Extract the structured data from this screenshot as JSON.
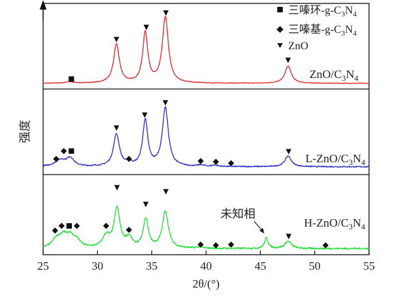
{
  "chart_data": {
    "type": "line",
    "xlabel": "2θ/(°)",
    "ylabel": "强度",
    "xlim": [
      25,
      55
    ],
    "x_ticks": [
      "25",
      "30",
      "35",
      "40",
      "45",
      "50",
      "55"
    ],
    "grid": false,
    "legend_position": "top-right",
    "legend": [
      {
        "marker": "square",
        "label": "三嗪环-g-C3N4"
      },
      {
        "marker": "diamond",
        "label": "三嗪基-g-C3N4"
      },
      {
        "marker": "triangle-down",
        "label": "ZnO"
      }
    ],
    "annotations": [
      {
        "text": "未知相",
        "x": 45.5,
        "panel": "H-ZnO/C3N4"
      }
    ],
    "series": [
      {
        "name": "ZnO/C3N4",
        "color": "#e0262b",
        "baseline": 0.05,
        "noise": 0.004,
        "peaks": [
          {
            "x": 27.4,
            "h": 0.02,
            "w": 0.4
          },
          {
            "x": 31.75,
            "h": 0.54,
            "w": 0.32
          },
          {
            "x": 34.4,
            "h": 0.7,
            "w": 0.28
          },
          {
            "x": 36.25,
            "h": 0.92,
            "w": 0.33
          },
          {
            "x": 47.55,
            "h": 0.24,
            "w": 0.35
          }
        ],
        "markers": [
          {
            "type": "square",
            "x": 27.6,
            "y": 0.11
          },
          {
            "type": "triangle-down",
            "x": 31.75,
            "y": 0.66
          },
          {
            "type": "triangle-down",
            "x": 34.5,
            "y": 0.83
          },
          {
            "type": "triangle-down",
            "x": 36.3,
            "y": 1.03
          },
          {
            "type": "triangle-down",
            "x": 47.55,
            "y": 0.37
          }
        ]
      },
      {
        "name": "L-ZnO/C3N4",
        "color": "#2c2cc8",
        "baseline": 0.08,
        "noise": 0.008,
        "peaks": [
          {
            "x": 26.6,
            "h": 0.09,
            "w": 0.6
          },
          {
            "x": 27.5,
            "h": 0.11,
            "w": 0.4
          },
          {
            "x": 31.75,
            "h": 0.45,
            "w": 0.33
          },
          {
            "x": 32.9,
            "h": 0.04,
            "w": 0.3
          },
          {
            "x": 34.4,
            "h": 0.64,
            "w": 0.28
          },
          {
            "x": 36.25,
            "h": 0.82,
            "w": 0.33
          },
          {
            "x": 39.5,
            "h": 0.02,
            "w": 0.3
          },
          {
            "x": 40.8,
            "h": 0.02,
            "w": 0.3
          },
          {
            "x": 47.55,
            "h": 0.15,
            "w": 0.35
          }
        ],
        "markers": [
          {
            "type": "diamond",
            "x": 26.2,
            "y": 0.19
          },
          {
            "type": "diamond",
            "x": 26.9,
            "y": 0.3
          },
          {
            "type": "square",
            "x": 27.6,
            "y": 0.3
          },
          {
            "type": "diamond",
            "x": 32.9,
            "y": 0.19
          },
          {
            "type": "diamond",
            "x": 39.5,
            "y": 0.16
          },
          {
            "type": "diamond",
            "x": 40.9,
            "y": 0.15
          },
          {
            "type": "diamond",
            "x": 42.3,
            "y": 0.13
          },
          {
            "type": "triangle-down",
            "x": 31.75,
            "y": 0.62
          },
          {
            "type": "triangle-down",
            "x": 34.35,
            "y": 0.8
          },
          {
            "type": "triangle-down",
            "x": 36.25,
            "y": 0.97
          },
          {
            "type": "triangle-down",
            "x": 47.6,
            "y": 0.29
          }
        ]
      },
      {
        "name": "H-ZnO/C3N4",
        "color": "#22dd3a",
        "baseline": 0.06,
        "noise": 0.012,
        "peaks": [
          {
            "x": 26.2,
            "h": 0.12,
            "w": 0.5
          },
          {
            "x": 26.9,
            "h": 0.16,
            "w": 0.45
          },
          {
            "x": 27.5,
            "h": 0.14,
            "w": 0.4
          },
          {
            "x": 28.1,
            "h": 0.1,
            "w": 0.4
          },
          {
            "x": 30.8,
            "h": 0.17,
            "w": 0.4
          },
          {
            "x": 31.8,
            "h": 0.58,
            "w": 0.33
          },
          {
            "x": 32.9,
            "h": 0.14,
            "w": 0.35
          },
          {
            "x": 34.45,
            "h": 0.43,
            "w": 0.28
          },
          {
            "x": 36.25,
            "h": 0.55,
            "w": 0.33
          },
          {
            "x": 39.4,
            "h": 0.02,
            "w": 0.3
          },
          {
            "x": 45.55,
            "h": 0.16,
            "w": 0.2
          },
          {
            "x": 47.55,
            "h": 0.11,
            "w": 0.35
          }
        ],
        "markers": [
          {
            "type": "diamond",
            "x": 26.1,
            "y": 0.33
          },
          {
            "type": "diamond",
            "x": 26.7,
            "y": 0.4
          },
          {
            "type": "square",
            "x": 27.4,
            "y": 0.4
          },
          {
            "type": "diamond",
            "x": 28.1,
            "y": 0.4
          },
          {
            "type": "diamond",
            "x": 30.8,
            "y": 0.4
          },
          {
            "type": "diamond",
            "x": 32.9,
            "y": 0.34
          },
          {
            "type": "diamond",
            "x": 39.5,
            "y": 0.12
          },
          {
            "type": "diamond",
            "x": 40.9,
            "y": 0.11
          },
          {
            "type": "diamond",
            "x": 42.3,
            "y": 0.12
          },
          {
            "type": "diamond",
            "x": 51.0,
            "y": 0.11
          },
          {
            "type": "triangle-down",
            "x": 31.8,
            "y": 0.97
          },
          {
            "type": "triangle-down",
            "x": 34.45,
            "y": 0.72
          },
          {
            "type": "triangle-down",
            "x": 36.3,
            "y": 0.91
          },
          {
            "type": "triangle-down",
            "x": 47.6,
            "y": 0.24
          }
        ]
      }
    ]
  }
}
